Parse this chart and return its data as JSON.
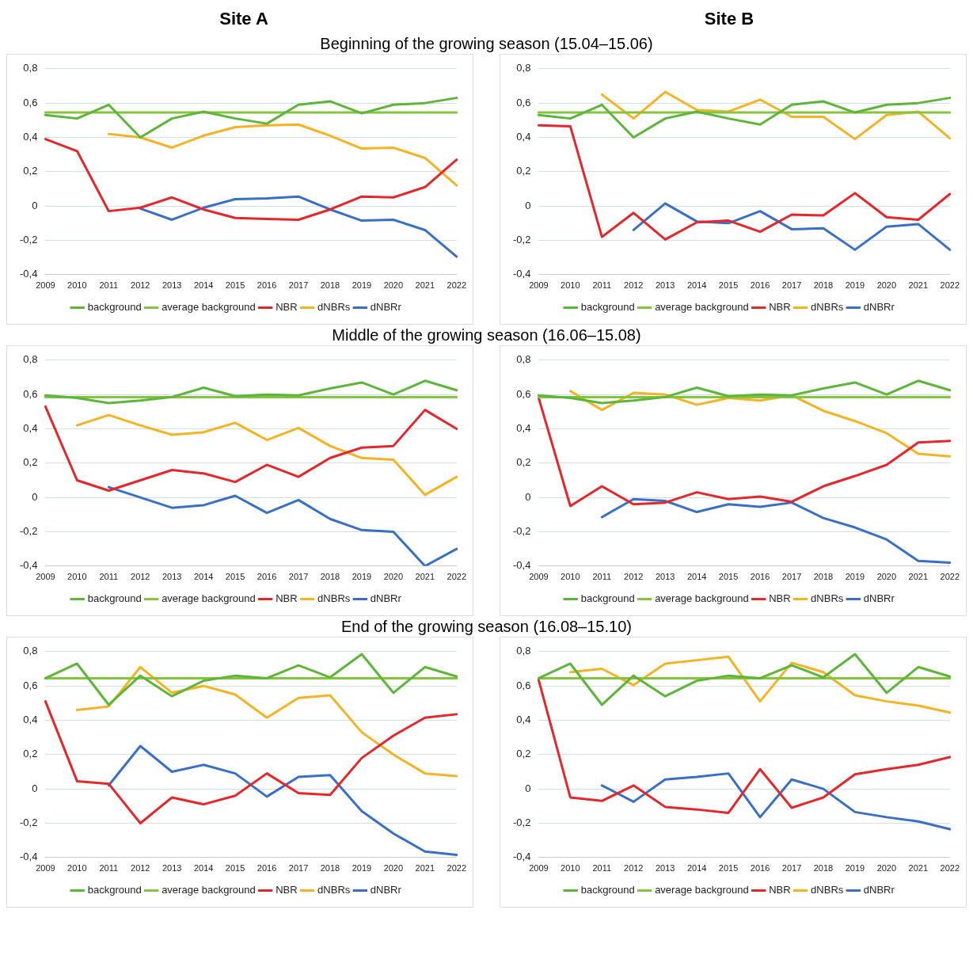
{
  "chart_data": [
    {
      "type": "line",
      "title": "Site A",
      "subtitle": "Beginning of the growing season (15.04–15.06)",
      "categories": [
        "2009",
        "2010",
        "2011",
        "2012",
        "2013",
        "2014",
        "2015",
        "2016",
        "2017",
        "2018",
        "2019",
        "2020",
        "2021",
        "2022"
      ],
      "ylim": [
        -0.4,
        0.8
      ],
      "yticks": [
        {
          "value": -0.4,
          "label": "-0,4"
        },
        {
          "value": -0.2,
          "label": "-0,2"
        },
        {
          "value": 0,
          "label": "0"
        },
        {
          "value": 0.2,
          "label": "0,2"
        },
        {
          "value": 0.4,
          "label": "0,4"
        },
        {
          "value": 0.6,
          "label": "0,6"
        },
        {
          "value": 0.8,
          "label": "0,8"
        }
      ],
      "grid": "y",
      "legend": "bottom",
      "marker": "none",
      "series": [
        {
          "name": "background",
          "color": "#5db53a",
          "values": [
            0.53,
            0.51,
            0.59,
            0.4,
            0.51,
            0.55,
            0.51,
            0.48,
            0.59,
            0.61,
            0.54,
            0.59,
            0.6,
            0.63
          ]
        },
        {
          "name": "average background",
          "color": "#86c440",
          "values": [
            0.545,
            0.545,
            0.545,
            0.545,
            0.545,
            0.545,
            0.545,
            0.545,
            0.545,
            0.545,
            0.545,
            0.545,
            0.545,
            0.545
          ]
        },
        {
          "name": "NBR",
          "color": "#e5262a",
          "values": [
            0.39,
            0.32,
            -0.03,
            -0.01,
            0.05,
            -0.02,
            -0.07,
            -0.075,
            -0.08,
            -0.02,
            0.055,
            0.05,
            0.11,
            0.27
          ]
        },
        {
          "name": "dNBRs",
          "color": "#f4b323",
          "values": [
            null,
            null,
            0.42,
            0.4,
            0.34,
            0.41,
            0.46,
            0.47,
            0.475,
            0.41,
            0.335,
            0.34,
            0.28,
            0.12
          ]
        },
        {
          "name": "dNBRr",
          "color": "#3a6fc8",
          "values": [
            null,
            null,
            null,
            -0.015,
            -0.08,
            -0.01,
            0.04,
            0.045,
            0.055,
            -0.02,
            -0.085,
            -0.08,
            -0.14,
            -0.295
          ]
        }
      ]
    },
    {
      "type": "line",
      "title": "Site B",
      "categories": [
        "2009",
        "2010",
        "2011",
        "2012",
        "2013",
        "2014",
        "2015",
        "2016",
        "2017",
        "2018",
        "2019",
        "2020",
        "2021",
        "2022"
      ],
      "ylim": [
        -0.4,
        0.8
      ],
      "yticks": [
        {
          "value": -0.4,
          "label": "-0,4"
        },
        {
          "value": -0.2,
          "label": "-0,2"
        },
        {
          "value": 0,
          "label": "0"
        },
        {
          "value": 0.2,
          "label": "0,2"
        },
        {
          "value": 0.4,
          "label": "0,4"
        },
        {
          "value": 0.6,
          "label": "0,6"
        },
        {
          "value": 0.8,
          "label": "0,8"
        }
      ],
      "grid": "y",
      "legend": "bottom",
      "marker": "none",
      "series": [
        {
          "name": "background",
          "color": "#5db53a",
          "values": [
            0.53,
            0.51,
            0.59,
            0.4,
            0.51,
            0.55,
            0.51,
            0.475,
            0.59,
            0.61,
            0.545,
            0.59,
            0.6,
            0.63
          ]
        },
        {
          "name": "average background",
          "color": "#86c440",
          "values": [
            0.545,
            0.545,
            0.545,
            0.545,
            0.545,
            0.545,
            0.545,
            0.545,
            0.545,
            0.545,
            0.545,
            0.545,
            0.545,
            0.545
          ]
        },
        {
          "name": "NBR",
          "color": "#e5262a",
          "values": [
            0.47,
            0.465,
            -0.18,
            -0.04,
            -0.195,
            -0.095,
            -0.085,
            -0.15,
            -0.05,
            -0.055,
            0.075,
            -0.065,
            -0.08,
            0.07
          ]
        },
        {
          "name": "dNBRs",
          "color": "#f4b323",
          "values": [
            null,
            null,
            0.65,
            0.51,
            0.665,
            0.56,
            0.55,
            0.62,
            0.52,
            0.52,
            0.39,
            0.53,
            0.55,
            0.395
          ]
        },
        {
          "name": "dNBRr",
          "color": "#3a6fc8",
          "values": [
            null,
            null,
            null,
            -0.14,
            0.015,
            -0.09,
            -0.1,
            -0.03,
            -0.135,
            -0.13,
            -0.255,
            -0.12,
            -0.105,
            -0.255
          ]
        }
      ]
    },
    {
      "type": "line",
      "subtitle": "Middle of the growing season (16.06–15.08)",
      "categories": [
        "2009",
        "2010",
        "2011",
        "2012",
        "2013",
        "2014",
        "2015",
        "2016",
        "2017",
        "2018",
        "2019",
        "2020",
        "2021",
        "2022"
      ],
      "ylim": [
        -0.4,
        0.8
      ],
      "yticks": [
        {
          "value": -0.4,
          "label": "-0,4"
        },
        {
          "value": -0.2,
          "label": "-0,2"
        },
        {
          "value": 0,
          "label": "0"
        },
        {
          "value": 0.2,
          "label": "0,2"
        },
        {
          "value": 0.4,
          "label": "0,4"
        },
        {
          "value": 0.6,
          "label": "0,6"
        },
        {
          "value": 0.8,
          "label": "0,8"
        }
      ],
      "grid": "y",
      "legend": "bottom",
      "marker": "none",
      "series": [
        {
          "name": "background",
          "color": "#5db53a",
          "values": [
            0.595,
            0.58,
            0.55,
            0.565,
            0.585,
            0.64,
            0.59,
            0.6,
            0.595,
            0.635,
            0.67,
            0.6,
            0.68,
            0.625
          ]
        },
        {
          "name": "average background",
          "color": "#86c440",
          "values": [
            0.585,
            0.585,
            0.585,
            0.585,
            0.585,
            0.585,
            0.585,
            0.585,
            0.585,
            0.585,
            0.585,
            0.585,
            0.585,
            0.585
          ]
        },
        {
          "name": "NBR",
          "color": "#e5262a",
          "values": [
            0.53,
            0.1,
            0.04,
            0.1,
            0.16,
            0.14,
            0.09,
            0.19,
            0.12,
            0.23,
            0.29,
            0.3,
            0.51,
            0.4
          ]
        },
        {
          "name": "dNBRs",
          "color": "#f4b323",
          "values": [
            null,
            0.42,
            0.48,
            0.42,
            0.365,
            0.38,
            0.435,
            0.335,
            0.405,
            0.3,
            0.23,
            0.22,
            0.015,
            0.12
          ]
        },
        {
          "name": "dNBRr",
          "color": "#3a6fc8",
          "values": [
            null,
            null,
            0.06,
            0.0,
            -0.06,
            -0.045,
            0.01,
            -0.09,
            -0.015,
            -0.125,
            -0.19,
            -0.2,
            -0.4,
            -0.3
          ]
        }
      ]
    },
    {
      "type": "line",
      "categories": [
        "2009",
        "2010",
        "2011",
        "2012",
        "2013",
        "2014",
        "2015",
        "2016",
        "2017",
        "2018",
        "2019",
        "2020",
        "2021",
        "2022"
      ],
      "ylim": [
        -0.4,
        0.8
      ],
      "yticks": [
        {
          "value": -0.4,
          "label": "-0,4"
        },
        {
          "value": -0.2,
          "label": "-0,2"
        },
        {
          "value": 0,
          "label": "0"
        },
        {
          "value": 0.2,
          "label": "0,2"
        },
        {
          "value": 0.4,
          "label": "0,4"
        },
        {
          "value": 0.6,
          "label": "0,6"
        },
        {
          "value": 0.8,
          "label": "0,8"
        }
      ],
      "grid": "y",
      "legend": "bottom",
      "marker": "none",
      "series": [
        {
          "name": "background",
          "color": "#5db53a",
          "values": [
            0.595,
            0.58,
            0.55,
            0.565,
            0.585,
            0.64,
            0.59,
            0.6,
            0.595,
            0.635,
            0.67,
            0.6,
            0.68,
            0.625
          ]
        },
        {
          "name": "average background",
          "color": "#86c440",
          "values": [
            0.585,
            0.585,
            0.585,
            0.585,
            0.585,
            0.585,
            0.585,
            0.585,
            0.585,
            0.585,
            0.585,
            0.585,
            0.585,
            0.585
          ]
        },
        {
          "name": "NBR",
          "color": "#e5262a",
          "values": [
            0.58,
            -0.05,
            0.065,
            -0.04,
            -0.03,
            0.03,
            -0.01,
            0.005,
            -0.025,
            0.065,
            0.125,
            0.19,
            0.32,
            0.33
          ]
        },
        {
          "name": "dNBRs",
          "color": "#f4b323",
          "values": [
            null,
            0.62,
            0.51,
            0.61,
            0.6,
            0.54,
            0.58,
            0.565,
            0.595,
            0.505,
            0.445,
            0.375,
            0.255,
            0.24
          ]
        },
        {
          "name": "dNBRr",
          "color": "#3a6fc8",
          "values": [
            null,
            null,
            -0.115,
            -0.01,
            -0.02,
            -0.085,
            -0.04,
            -0.055,
            -0.03,
            -0.12,
            -0.175,
            -0.245,
            -0.37,
            -0.38
          ]
        }
      ]
    },
    {
      "type": "line",
      "subtitle": "End of the growing season (16.08–15.10)",
      "categories": [
        "2009",
        "2010",
        "2011",
        "2012",
        "2013",
        "2014",
        "2015",
        "2016",
        "2017",
        "2018",
        "2019",
        "2020",
        "2021",
        "2022"
      ],
      "ylim": [
        -0.4,
        0.8
      ],
      "yticks": [
        {
          "value": -0.4,
          "label": "-0,4"
        },
        {
          "value": -0.2,
          "label": "-0,2"
        },
        {
          "value": 0,
          "label": "0"
        },
        {
          "value": 0.2,
          "label": "0,2"
        },
        {
          "value": 0.4,
          "label": "0,4"
        },
        {
          "value": 0.6,
          "label": "0,6"
        },
        {
          "value": 0.8,
          "label": "0,8"
        }
      ],
      "grid": "y",
      "legend": "bottom",
      "marker": "none",
      "series": [
        {
          "name": "background",
          "color": "#5db53a",
          "values": [
            0.645,
            0.73,
            0.49,
            0.66,
            0.54,
            0.63,
            0.66,
            0.645,
            0.72,
            0.65,
            0.785,
            0.56,
            0.71,
            0.655
          ]
        },
        {
          "name": "average background",
          "color": "#86c440",
          "values": [
            0.645,
            0.645,
            0.645,
            0.645,
            0.645,
            0.645,
            0.645,
            0.645,
            0.645,
            0.645,
            0.645,
            0.645,
            0.645,
            0.645
          ]
        },
        {
          "name": "NBR",
          "color": "#e5262a",
          "values": [
            0.51,
            0.045,
            0.03,
            -0.2,
            -0.05,
            -0.09,
            -0.04,
            0.09,
            -0.025,
            -0.035,
            0.18,
            0.31,
            0.415,
            0.435
          ]
        },
        {
          "name": "dNBRs",
          "color": "#f4b323",
          "values": [
            null,
            0.46,
            0.48,
            0.71,
            0.56,
            0.6,
            0.55,
            0.415,
            0.53,
            0.545,
            0.33,
            0.2,
            0.09,
            0.075
          ]
        },
        {
          "name": "dNBRr",
          "color": "#3a6fc8",
          "values": [
            null,
            null,
            0.02,
            0.25,
            0.1,
            0.14,
            0.09,
            -0.045,
            0.07,
            0.08,
            -0.13,
            -0.26,
            -0.365,
            -0.385
          ]
        }
      ]
    },
    {
      "type": "line",
      "categories": [
        "2009",
        "2010",
        "2011",
        "2012",
        "2013",
        "2014",
        "2015",
        "2016",
        "2017",
        "2018",
        "2019",
        "2020",
        "2021",
        "2022"
      ],
      "ylim": [
        -0.4,
        0.8
      ],
      "yticks": [
        {
          "value": -0.4,
          "label": "-0,4"
        },
        {
          "value": -0.2,
          "label": "-0,2"
        },
        {
          "value": 0,
          "label": "0"
        },
        {
          "value": 0.2,
          "label": "0,2"
        },
        {
          "value": 0.4,
          "label": "0,4"
        },
        {
          "value": 0.6,
          "label": "0,6"
        },
        {
          "value": 0.8,
          "label": "0,8"
        }
      ],
      "grid": "y",
      "legend": "bottom",
      "marker": "none",
      "series": [
        {
          "name": "background",
          "color": "#5db53a",
          "values": [
            0.645,
            0.73,
            0.49,
            0.66,
            0.54,
            0.63,
            0.66,
            0.645,
            0.72,
            0.65,
            0.785,
            0.56,
            0.71,
            0.655
          ]
        },
        {
          "name": "average background",
          "color": "#86c440",
          "values": [
            0.645,
            0.645,
            0.645,
            0.645,
            0.645,
            0.645,
            0.645,
            0.645,
            0.645,
            0.645,
            0.645,
            0.645,
            0.645,
            0.645
          ]
        },
        {
          "name": "NBR",
          "color": "#e5262a",
          "values": [
            0.635,
            -0.05,
            -0.07,
            0.02,
            -0.105,
            -0.12,
            -0.14,
            0.115,
            -0.11,
            -0.05,
            0.085,
            0.115,
            0.14,
            0.185
          ]
        },
        {
          "name": "dNBRs",
          "color": "#f4b323",
          "values": [
            null,
            0.68,
            0.7,
            0.605,
            0.73,
            0.75,
            0.77,
            0.51,
            0.735,
            0.68,
            0.545,
            0.51,
            0.485,
            0.445
          ]
        },
        {
          "name": "dNBRr",
          "color": "#3a6fc8",
          "values": [
            null,
            null,
            0.02,
            -0.075,
            0.055,
            0.07,
            0.09,
            -0.165,
            0.055,
            0,
            -0.135,
            -0.165,
            -0.19,
            -0.235
          ]
        }
      ]
    }
  ]
}
